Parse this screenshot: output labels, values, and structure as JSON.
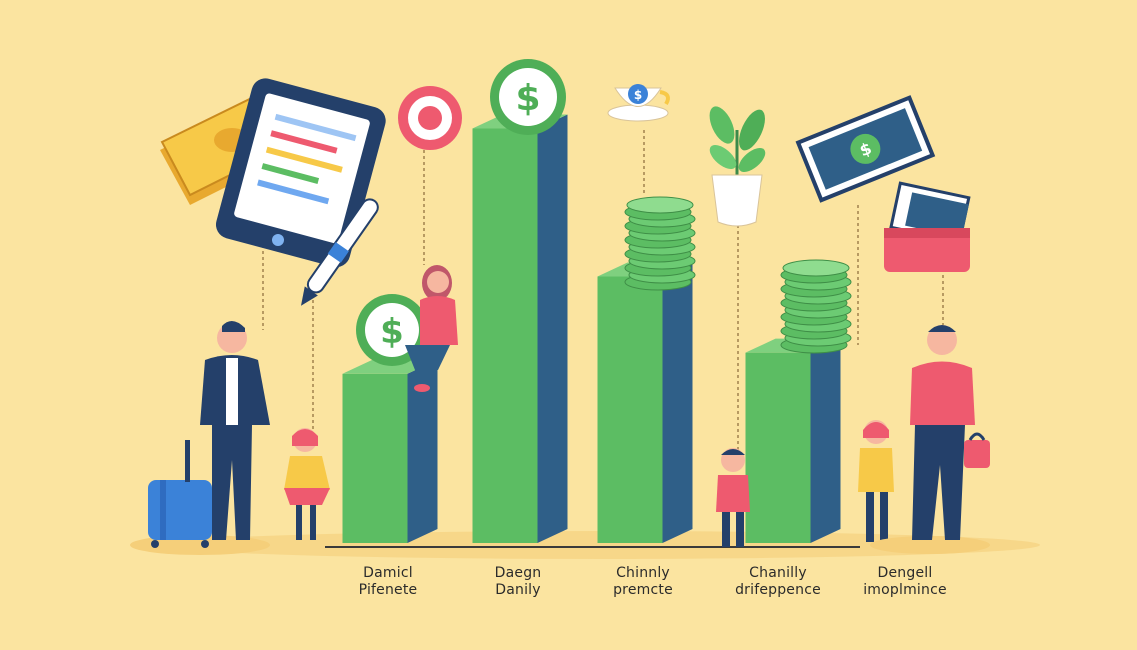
{
  "chart_data": {
    "type": "bar",
    "title": "",
    "xlabel": "",
    "ylabel": "",
    "ylim": [
      0,
      100
    ],
    "categories": [
      [
        "Damicl",
        "Pifenete"
      ],
      [
        "Daegn",
        "Danily"
      ],
      [
        "Chinnly",
        "premcte"
      ],
      [
        "Chanilly",
        "drifeppence"
      ],
      [
        "Dengell",
        "imoplmince"
      ]
    ],
    "values": [
      40,
      98,
      63,
      45,
      0
    ],
    "grid": false,
    "legend": "none"
  },
  "colors": {
    "background": "#fbe4a0",
    "bar_front": "#5cbd63",
    "bar_side": "#2f5f88",
    "bar_top": "#7fd07f",
    "coin": "#6ccb73",
    "navy": "#24406a",
    "pink": "#ee5a6f",
    "yellow": "#f7c948"
  },
  "icons": [
    "cash-stack-icon",
    "tablet-icon",
    "pen-icon",
    "target-icon",
    "dollar-coin-icon",
    "coffee-cup-icon",
    "plant-icon",
    "banknote-icon",
    "wallet-icon",
    "coin-stack-icon",
    "suitcase-icon",
    "handbag-icon"
  ]
}
